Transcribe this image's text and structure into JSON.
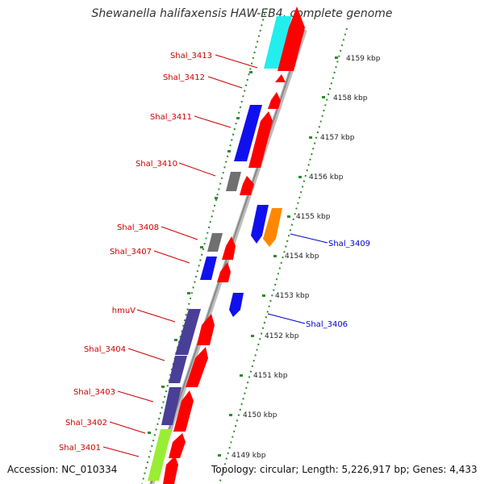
{
  "title": "Shewanella halifaxensis HAW-EB4, complete genome",
  "accession_text": "Accession: NC_010334",
  "topology_text": "Topology: circular; Length: 5,226,917 bp; Genes: 4,433",
  "kbp_ticks": [
    "4149 kbp",
    "4150 kbp",
    "4151 kbp",
    "4152 kbp",
    "4153 kbp",
    "4154 kbp",
    "4155 kbp",
    "4156 kbp",
    "4157 kbp",
    "4158 kbp",
    "4159 kbp"
  ],
  "gene_labels_left": [
    "Shal_3413",
    "Shal_3412",
    "Shal_3411",
    "Shal_3410",
    "Shal_3408",
    "Shal_3407",
    "hmuV",
    "Shal_3404",
    "Shal_3403",
    "Shal_3402",
    "Shal_3401"
  ],
  "gene_labels_right": [
    "Shal_3409",
    "Shal_3406"
  ],
  "colors": {
    "forward_label": "#cc0000",
    "reverse_label": "#0000cc",
    "cds_red": "#ff0000",
    "cds_blue": "#1010ee",
    "cds_cyan": "#22eeee",
    "cds_gray": "#707070",
    "cds_orange": "#ff8800",
    "cds_purple": "#4a3f96",
    "cds_lime": "#99ee33",
    "dots": "#2e8b2e",
    "backbone": "#888888"
  }
}
